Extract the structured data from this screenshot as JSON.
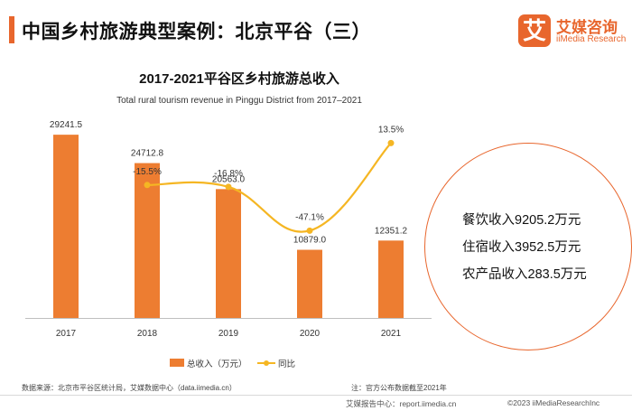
{
  "header": {
    "title": "中国乡村旅游典型案例：北京平谷（三）",
    "logo_mark": "艾",
    "logo_cn": "艾媒咨询",
    "logo_en": "iiMedia Research"
  },
  "chart_data": {
    "type": "bar",
    "title": "2017-2021平谷区乡村旅游总收入",
    "subtitle": "Total rural tourism revenue in Pinggu District from 2017–2021",
    "categories": [
      "2017",
      "2018",
      "2019",
      "2020",
      "2021"
    ],
    "series": [
      {
        "name": "总收入（万元）",
        "type": "bar",
        "values": [
          29241.5,
          24712.8,
          20563.0,
          10879.0,
          12351.2
        ],
        "labels": [
          "29241.5",
          "24712.8",
          "20563.0",
          "10879.0",
          "12351.2"
        ]
      },
      {
        "name": "同比",
        "type": "line",
        "values": [
          null,
          -15.5,
          -16.8,
          -47.1,
          13.5
        ],
        "labels": [
          "",
          "-15.5%",
          "-16.8%",
          "-47.1%",
          "13.5%"
        ]
      }
    ],
    "bar_color": "#ed7d31",
    "line_color": "#f5b623",
    "ylim_bar": [
      0,
      32000
    ],
    "ylim_line": [
      -55,
      20
    ]
  },
  "callout": {
    "lines": [
      "餐饮收入9205.2万元",
      "住宿收入3952.5万元",
      "农产品收入283.5万元"
    ]
  },
  "footer": {
    "source": "数据来源：北京市平谷区统计局，艾媒数据中心（data.iimedia.cn）",
    "note": "注：官方公布数据截至2021年",
    "report_center": "艾媒报告中心：report.iimedia.cn",
    "copyright": "©2023 iiMediaResearchInc"
  }
}
